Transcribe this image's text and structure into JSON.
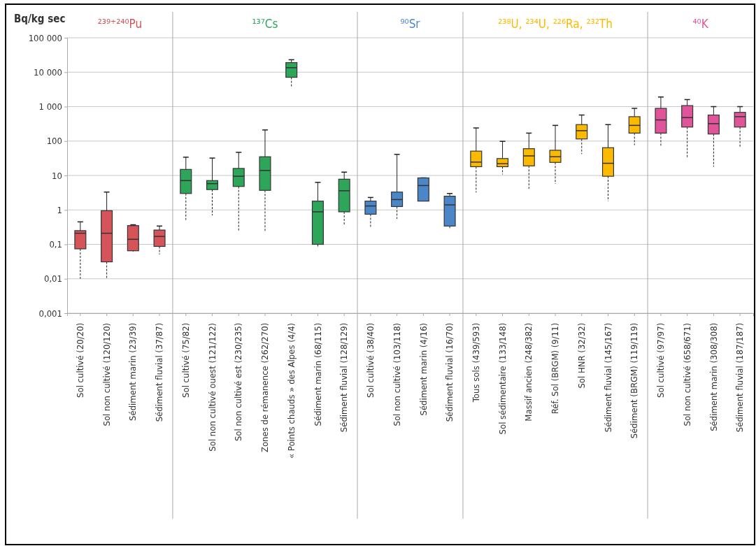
{
  "chart_data": {
    "type": "box",
    "ylabel": "Bq/kg sec",
    "log": true,
    "grid": "y",
    "ylim": [
      0.001,
      100000
    ],
    "yticks": [
      {
        "value": 0.001,
        "label": "0,001"
      },
      {
        "value": 0.01,
        "label": "0,01"
      },
      {
        "value": 0.1,
        "label": "0,1"
      },
      {
        "value": 1,
        "label": "1"
      },
      {
        "value": 10,
        "label": "10"
      },
      {
        "value": 100,
        "label": "100"
      },
      {
        "value": 1000,
        "label": "1 000"
      },
      {
        "value": 10000,
        "label": "10 000"
      },
      {
        "value": 100000,
        "label": "100 000"
      }
    ],
    "categories": [
      "Sol cultivé (20/20)",
      "Sol non cultivé (120/120)",
      "Sédiment marin (23/39)",
      "Sédiment fluvial (37/87)",
      "Sol cultivé (75/82)",
      "Sol non cultivé ouest (121/122)",
      "Sol non cultivé est (230/235)",
      "Zones de rémanence (262/270)",
      "« Points chauds » des Alpes (4/4)",
      "Sédiment marin (68/115)",
      "Sédiment fluvial (128/129)",
      "Sol cultivé (38/40)",
      "Sol non cultivé (103/118)",
      "Sédiment marin (4/16)",
      "Sédiment fluvial (16/70)",
      "Tous sols (439/593)",
      "Sol sédimentaire (133/148)",
      "Massif ancien (248/382)",
      "Réf. Sol (BRGM) (9/11)",
      "Sol HNR (32/32)",
      "Sédiment fluvial (145/167)",
      "Sédiment (BRGM) (119/119)",
      "Sol cultivé (97/97)",
      "Sol non cultivé (658/671)",
      "Sédiment marin (308/308)",
      "Sédiment fluvial (187/187)"
    ],
    "series": [
      {
        "name": "²³⁹⁺²⁴⁰Pu",
        "color": "#d4545a",
        "boxes": [
          {
            "low": 0.01,
            "q1": 0.074,
            "median": 0.21,
            "q3": 0.25,
            "high": 0.45
          },
          {
            "low": 0.01,
            "q1": 0.031,
            "median": 0.21,
            "q3": 0.95,
            "high": 3.3
          },
          {
            "low": 0.062,
            "q1": 0.065,
            "median": 0.14,
            "q3": 0.35,
            "high": 0.37
          },
          {
            "low": 0.051,
            "q1": 0.087,
            "median": 0.17,
            "q3": 0.26,
            "high": 0.34
          },
          null,
          null,
          null,
          null,
          null,
          null,
          null,
          null,
          null,
          null,
          null,
          null,
          null,
          null,
          null,
          null,
          null,
          null,
          null,
          null,
          null,
          null
        ]
      },
      {
        "name": "¹³⁷Cs",
        "color": "#2ea65a",
        "boxes": [
          null,
          null,
          null,
          null,
          {
            "low": 0.51,
            "q1": 3,
            "median": 7.1,
            "q3": 15,
            "high": 34
          },
          {
            "low": 0.69,
            "q1": 3.9,
            "median": 5.8,
            "q3": 7.1,
            "high": 32
          },
          {
            "low": 0.23,
            "q1": 4.8,
            "median": 9.5,
            "q3": 16,
            "high": 47
          },
          {
            "low": 0.24,
            "q1": 3.7,
            "median": 14,
            "q3": 35,
            "high": 210
          },
          {
            "low": 3500,
            "q1": 7100,
            "median": 13500,
            "q3": 19000,
            "high": 23000
          },
          {
            "low": 0.079,
            "q1": 0.1,
            "median": 0.88,
            "q3": 1.8,
            "high": 6.3
          },
          {
            "low": 0.36,
            "q1": 0.88,
            "median": 3.6,
            "q3": 7.8,
            "high": 12.5
          },
          null,
          null,
          null,
          null,
          null,
          null,
          null,
          null,
          null,
          null,
          null,
          null,
          null,
          null,
          null
        ]
      },
      {
        "name": "⁹⁰Sr",
        "color": "#4a86c8",
        "boxes": [
          null,
          null,
          null,
          null,
          null,
          null,
          null,
          null,
          null,
          null,
          null,
          {
            "low": 0.31,
            "q1": 0.75,
            "median": 1.3,
            "q3": 1.8,
            "high": 2.3
          },
          {
            "low": 0.55,
            "q1": 1.25,
            "median": 2,
            "q3": 3.3,
            "high": 41
          },
          {
            "low": 1.8,
            "q1": 1.8,
            "median": 5.1,
            "q3": 8.5,
            "high": 8.5
          },
          {
            "low": 0.29,
            "q1": 0.34,
            "median": 1.4,
            "q3": 2.5,
            "high": 3
          },
          null,
          null,
          null,
          null,
          null,
          null,
          null,
          null,
          null,
          null,
          null
        ]
      },
      {
        "name": "²³⁸U, ²³⁴U, ²²⁶Ra, ²³²Th",
        "color": "#fbb900",
        "boxes": [
          null,
          null,
          null,
          null,
          null,
          null,
          null,
          null,
          null,
          null,
          null,
          null,
          null,
          null,
          null,
          {
            "low": 3.2,
            "q1": 18,
            "median": 24.5,
            "q3": 51,
            "high": 240
          },
          {
            "low": 10.7,
            "q1": 18,
            "median": 22,
            "q3": 31,
            "high": 98
          },
          {
            "low": 4.1,
            "q1": 19,
            "median": 37,
            "q3": 60,
            "high": 170
          },
          {
            "low": 5.7,
            "q1": 24,
            "median": 35,
            "q3": 54,
            "high": 285
          },
          {
            "low": 42,
            "q1": 115,
            "median": 200,
            "q3": 300,
            "high": 570
          },
          {
            "low": 1.8,
            "q1": 9.5,
            "median": 22.6,
            "q3": 64,
            "high": 300
          },
          {
            "low": 76,
            "q1": 170,
            "median": 285,
            "q3": 510,
            "high": 890
          },
          null,
          null,
          null,
          null
        ]
      },
      {
        "name": "⁴⁰K",
        "color": "#e0559a",
        "boxes": [
          null,
          null,
          null,
          null,
          null,
          null,
          null,
          null,
          null,
          null,
          null,
          null,
          null,
          null,
          null,
          null,
          null,
          null,
          null,
          null,
          null,
          null,
          {
            "low": 72,
            "q1": 170,
            "median": 410,
            "q3": 890,
            "high": 1900
          },
          {
            "low": 34,
            "q1": 255,
            "median": 480,
            "q3": 1070,
            "high": 1600
          },
          {
            "low": 18,
            "q1": 160,
            "median": 320,
            "q3": 570,
            "high": 1000
          },
          {
            "low": 63,
            "q1": 255,
            "median": 510,
            "q3": 680,
            "high": 1000
          }
        ]
      }
    ]
  }
}
